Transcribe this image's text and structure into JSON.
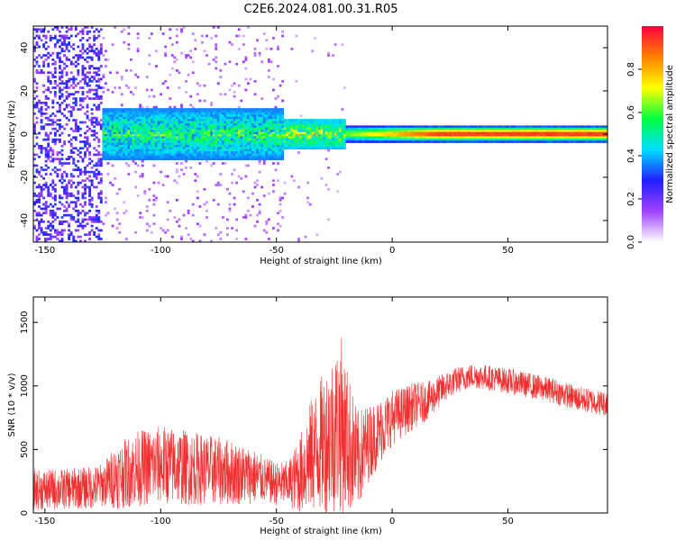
{
  "figure": {
    "title": "C2E6.2024.081.00.31.R05"
  },
  "chart_data": [
    {
      "type": "heatmap",
      "xlabel": "Height of straight line (km)",
      "ylabel": "Frequency (Hz)",
      "xlim": [
        -155,
        93
      ],
      "ylim": [
        -50,
        50
      ],
      "xticks": [
        -150,
        -100,
        -50,
        0,
        50
      ],
      "xtick_labels": [
        "-150",
        "-100",
        "-50",
        "0",
        "50"
      ],
      "yticks": [
        -40,
        -20,
        0,
        20,
        40
      ],
      "ytick_labels": [
        "-40",
        "-20",
        "0",
        "20",
        "40"
      ],
      "grid": false,
      "description_regions": [
        {
          "x_range": [
            -155,
            -125
          ],
          "character": "broadband scattered energy across all frequencies, amplitude 0.1-0.3"
        },
        {
          "x_range": [
            -125,
            -47
          ],
          "character": "band near 0 Hz, width about +/-12 Hz, amplitude 0.3-0.6 with scattered weaker energy"
        },
        {
          "x_range": [
            -47,
            -20
          ],
          "character": "narrowing band, amplitude 0.4-0.8"
        },
        {
          "x_range": [
            -20,
            93
          ],
          "character": "narrow band at about 0 Hz, amplitude 0.8-1.0 along center"
        }
      ],
      "colorbar": {
        "label": "Normalized spectral amplitude",
        "range": [
          0.0,
          1.0
        ],
        "ticks": [
          0.0,
          0.2,
          0.4,
          0.6,
          0.8
        ],
        "tick_labels": [
          "0.0",
          "0.2",
          "0.4",
          "0.6",
          "0.8"
        ],
        "colors": [
          "#ffffff",
          "#a040ff",
          "#2020ff",
          "#00e0ff",
          "#00ff40",
          "#ffff00",
          "#ff8000",
          "#ff0040"
        ]
      }
    },
    {
      "type": "line",
      "xlabel": "Height of straight line (km)",
      "ylabel": "SNR (10 * v/v)",
      "xlim": [
        -155,
        93
      ],
      "ylim": [
        0,
        1700
      ],
      "xticks": [
        -150,
        -100,
        -50,
        0,
        50
      ],
      "xtick_labels": [
        "-150",
        "-100",
        "-50",
        "0",
        "50"
      ],
      "yticks": [
        0,
        500,
        1000,
        1500
      ],
      "ytick_labels": [
        "0",
        "500",
        "1000",
        "1500"
      ],
      "grid": false,
      "series": [
        {
          "color": "#f03030",
          "x": [
            -155,
            -140,
            -130,
            -125,
            -120,
            -110,
            -100,
            -90,
            -80,
            -70,
            -60,
            -55,
            -50,
            -45,
            -40,
            -35,
            -30,
            -25,
            -22,
            -20,
            -15,
            -12,
            -10,
            -5,
            0,
            5,
            10,
            15,
            20,
            25,
            30,
            35,
            40,
            50,
            60,
            70,
            80,
            93
          ],
          "y": [
            180,
            190,
            200,
            220,
            280,
            350,
            380,
            360,
            340,
            320,
            290,
            260,
            230,
            230,
            300,
            450,
            550,
            650,
            700,
            600,
            400,
            500,
            550,
            650,
            750,
            800,
            850,
            880,
            950,
            1020,
            1060,
            1080,
            1070,
            1040,
            1000,
            960,
            900,
            860
          ],
          "noise_amplitude": [
            160,
            160,
            170,
            170,
            250,
            300,
            310,
            300,
            280,
            260,
            220,
            180,
            170,
            180,
            300,
            450,
            550,
            650,
            700,
            600,
            400,
            350,
            300,
            260,
            220,
            200,
            180,
            150,
            130,
            110,
            100,
            100,
            100,
            100,
            100,
            100,
            100,
            100
          ]
        }
      ]
    }
  ]
}
